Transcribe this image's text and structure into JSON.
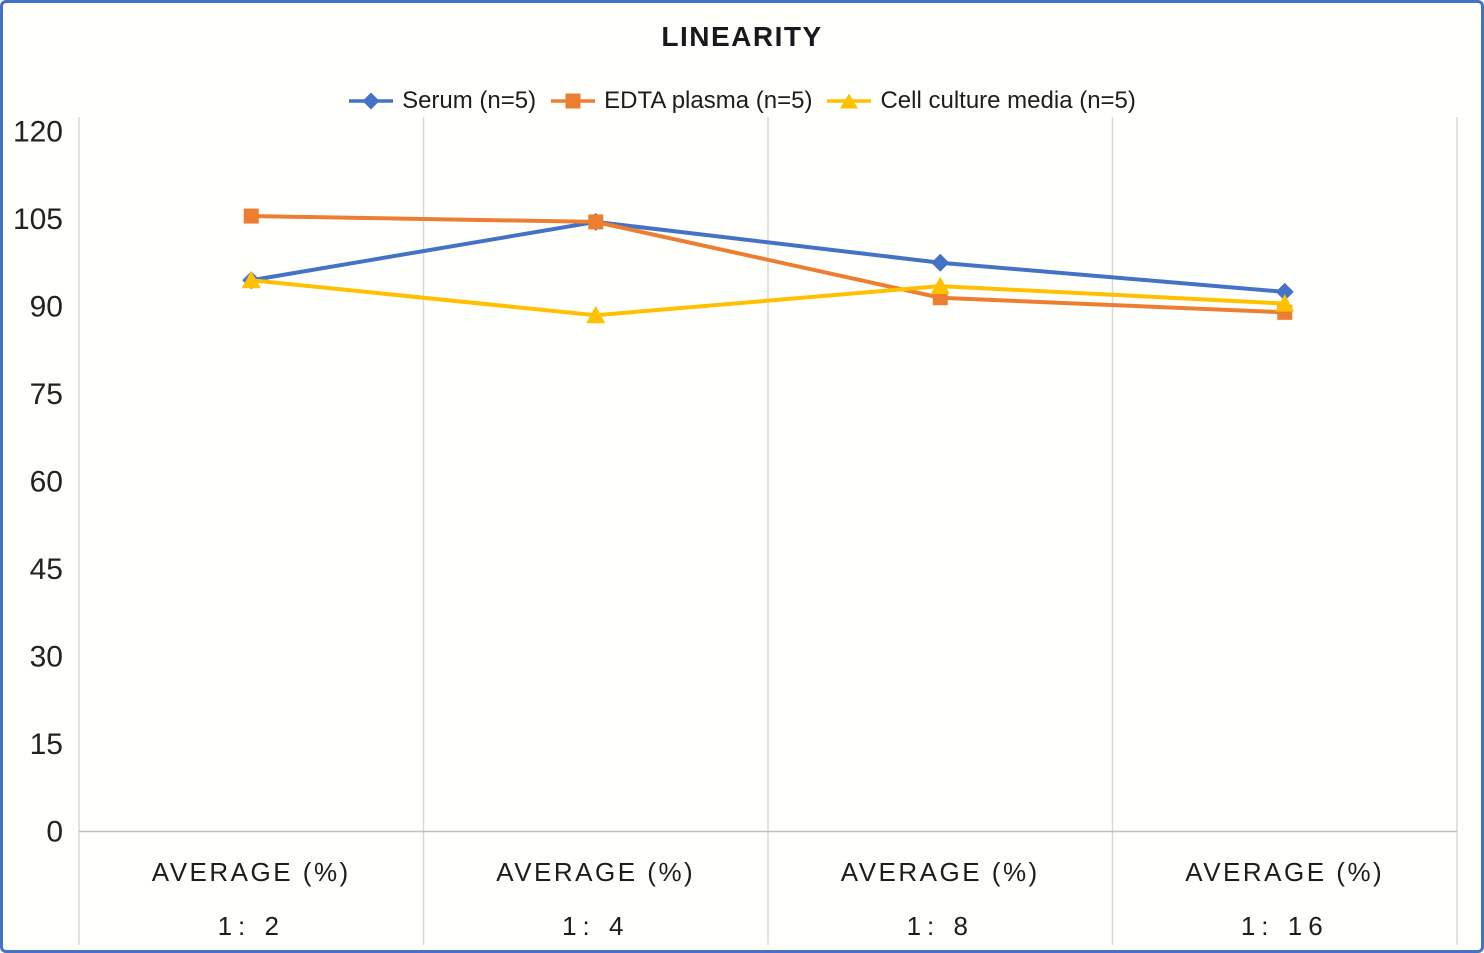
{
  "window": {
    "border_color": "#4472C4",
    "background": "#FFFFFC"
  },
  "chart_data": {
    "type": "line",
    "title": "LINEARITY",
    "legend_position": "top",
    "grid": {
      "vertical": true,
      "horizontal": false
    },
    "xlabel": "",
    "ylabel": "",
    "ylim": [
      0,
      120
    ],
    "y_ticks": [
      0,
      15,
      30,
      45,
      60,
      75,
      90,
      105,
      120
    ],
    "x_categories": [
      {
        "line1": "AVERAGE (%)",
        "line2": "1:  2"
      },
      {
        "line1": "AVERAGE (%)",
        "line2": "1:  4"
      },
      {
        "line1": "AVERAGE (%)",
        "line2": "1:  8"
      },
      {
        "line1": "AVERAGE (%)",
        "line2": "1:  16"
      }
    ],
    "series": [
      {
        "name": "Serum (n=5)",
        "marker": "diamond",
        "color": "#4472C4",
        "values": [
          94.5,
          104.5,
          97.5,
          92.5
        ]
      },
      {
        "name": "EDTA plasma (n=5)",
        "marker": "square",
        "color": "#ED7D31",
        "values": [
          105.5,
          104.5,
          91.5,
          89
        ]
      },
      {
        "name": "Cell culture media (n=5)",
        "marker": "triangle",
        "color": "#FFC000",
        "values": [
          94.5,
          88.5,
          93.5,
          90.5
        ]
      }
    ],
    "colors": {
      "gridline": "#D9D9D9",
      "axis_line": "#BFBFBF",
      "tick_text": "#222222",
      "title_text": "#18181F"
    }
  }
}
